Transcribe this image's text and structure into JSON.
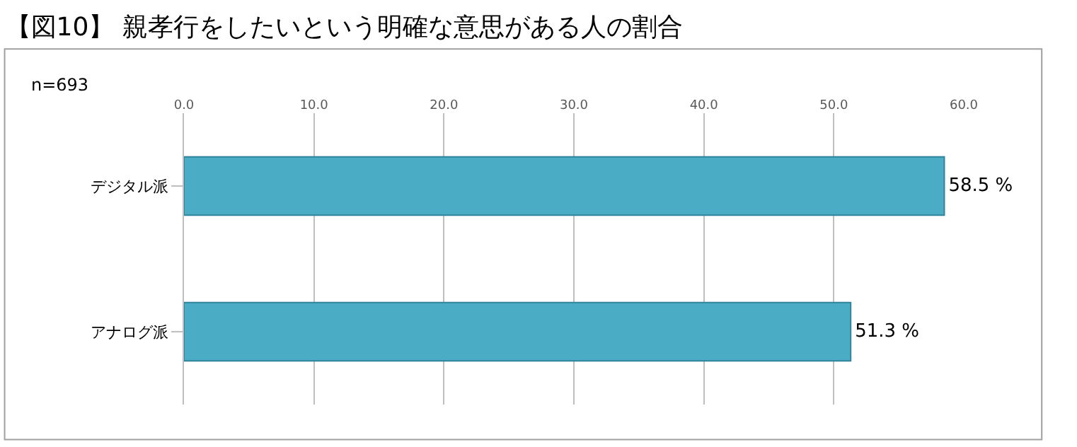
{
  "chart_data": {
    "type": "bar",
    "orientation": "horizontal",
    "title": "【図10】 親孝行をしたいという明確な意思がある人の割合",
    "categories": [
      "デジタル派",
      "アナログ派"
    ],
    "values": [
      58.5,
      51.3
    ],
    "color": "#4bacc6",
    "value_labels": [
      "58.5 %",
      "51.3 %"
    ],
    "xlim": [
      0,
      60
    ],
    "xticks": [
      {
        "value": 0,
        "label": "0.0"
      },
      {
        "value": 10,
        "label": "10.0"
      },
      {
        "value": 20,
        "label": "20.0"
      },
      {
        "value": 30,
        "label": "30.0"
      },
      {
        "value": 40,
        "label": "40.0"
      },
      {
        "value": 50,
        "label": "50.0"
      },
      {
        "value": 60,
        "label": "60.0"
      }
    ],
    "grid": "x",
    "annotations": [
      "n=693"
    ]
  }
}
